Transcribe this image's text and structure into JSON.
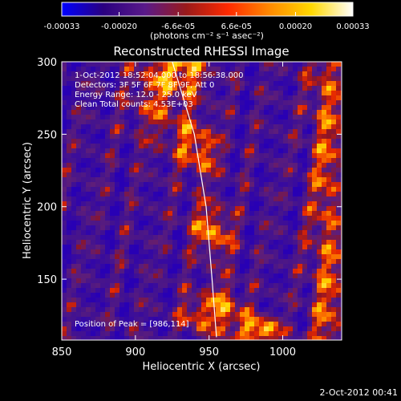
{
  "chart_data": {
    "type": "heatmap",
    "title": "Reconstructed RHESSI Image",
    "xlabel": "Heliocentric X (arcsec)",
    "ylabel": "Heliocentric Y (arcsec)",
    "xlim": [
      850,
      1040
    ],
    "ylim": [
      108,
      300
    ],
    "x_ticks": [
      850,
      900,
      950,
      1000
    ],
    "y_ticks": [
      150,
      200,
      250,
      300
    ],
    "colorbar": {
      "min": -0.00033,
      "max": 0.00033,
      "ticks": [
        {
          "value": -0.00033,
          "label": "-0.00033"
        },
        {
          "value": -0.0002,
          "label": "-0.00020"
        },
        {
          "value": -6.6e-05,
          "label": "-6.6e-05"
        },
        {
          "value": 6.6e-05,
          "label": "6.6e-05"
        },
        {
          "value": 0.0002,
          "label": "0.00020"
        },
        {
          "value": 0.00033,
          "label": "0.00033"
        }
      ],
      "units_label": "(photons cm⁻² s⁻¹ asec⁻²)",
      "colors": [
        "#0000ff",
        "#2a0080",
        "#5a1a8a",
        "#9a1a1a",
        "#ff2a00",
        "#ff8a00",
        "#ffd800",
        "#ffffff"
      ]
    },
    "annotations": [
      "1-Oct-2012 18:52:04.000 to 18:56:38.000",
      "Detectors: 3F 5F 6F 7F 8F 9F, Att 0",
      "Energy Range: 12.0 - 25.0 keV",
      "Clean    Total counts: 4.53E+03"
    ],
    "peak_label": "Position of Peak = [986,114]",
    "limb_curve": [
      [
        925,
        300
      ],
      [
        940,
        250
      ],
      [
        948,
        200
      ],
      [
        952,
        150
      ],
      [
        955,
        110
      ]
    ],
    "peak": [
      986,
      114
    ]
  },
  "footer": {
    "timestamp": "2-Oct-2012 00:41"
  }
}
